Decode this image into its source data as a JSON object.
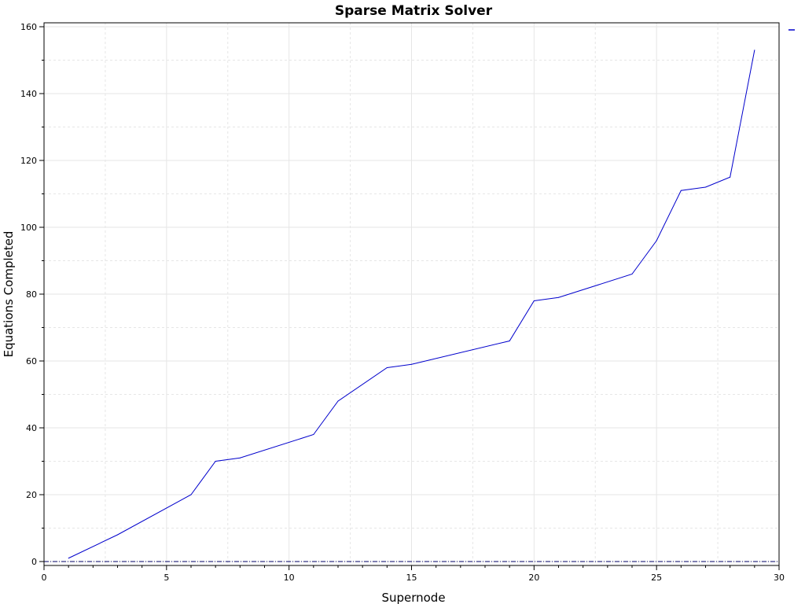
{
  "chart_data": {
    "type": "line",
    "title": "Sparse Matrix Solver",
    "xlabel": "Supernode",
    "ylabel": "Equations Completed",
    "xlim": [
      0,
      30
    ],
    "ylim": [
      0,
      160
    ],
    "x_ticks": [
      0,
      5,
      10,
      15,
      20,
      25,
      30
    ],
    "y_ticks": [
      0,
      20,
      40,
      60,
      80,
      100,
      120,
      140,
      160
    ],
    "grid": true,
    "legend_position": "top-right",
    "series": [
      {
        "color": "#0000cc",
        "x": [
          1,
          3,
          6,
          7,
          8,
          11,
          12,
          14,
          15,
          19,
          20,
          21,
          24,
          25,
          26,
          27,
          28,
          29
        ],
        "y": [
          1,
          8,
          20,
          30,
          31,
          38,
          48,
          58,
          59,
          66,
          78,
          79,
          86,
          96,
          111,
          112,
          115,
          153
        ]
      }
    ]
  }
}
